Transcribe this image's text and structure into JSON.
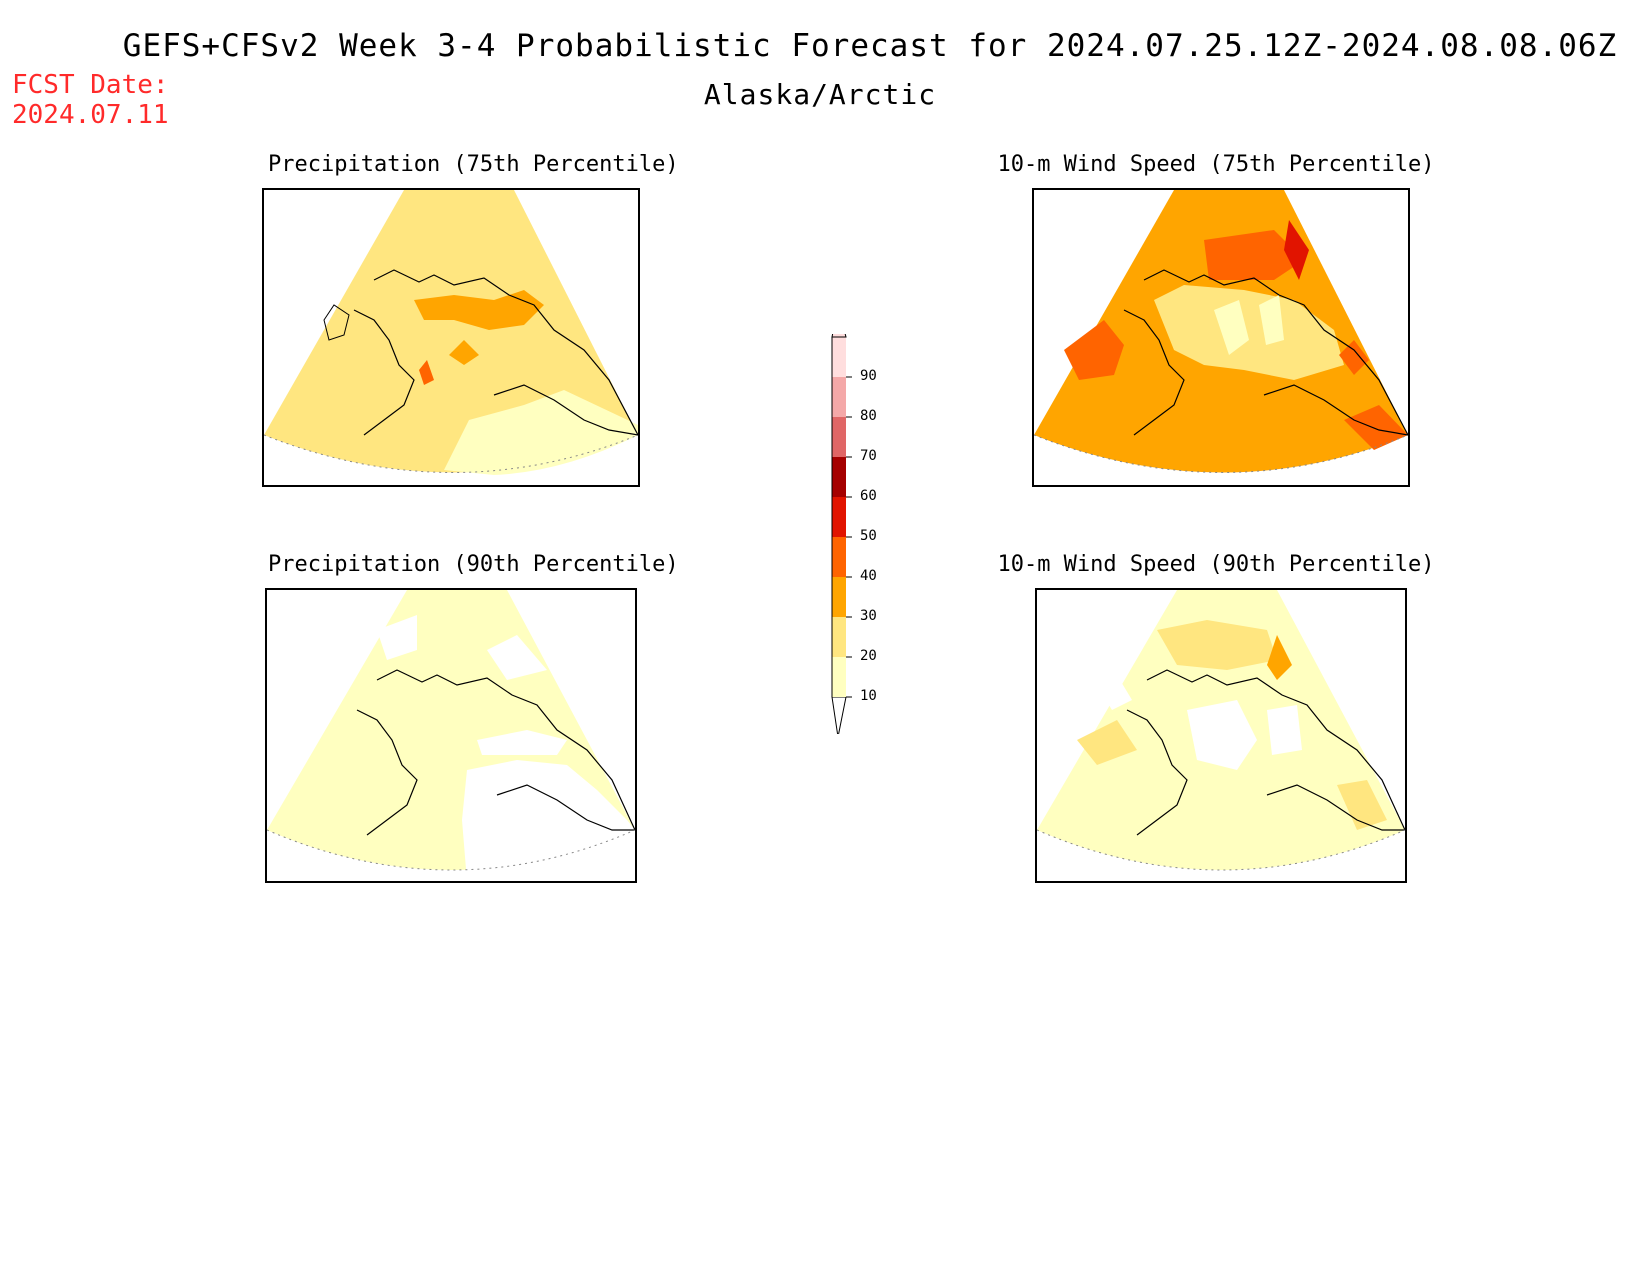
{
  "header": {
    "title": "GEFS+CFSv2 Week 3-4 Probabilistic Forecast for 2024.07.25.12Z-2024.08.08.06Z",
    "subtitle": "Alaska/Arctic",
    "fcst_line1": "FCST Date:",
    "fcst_line2": "2024.07.11"
  },
  "panels": [
    {
      "title": "Precipitation (75th Percentile)",
      "dominant_category": "20-30"
    },
    {
      "title": "10-m Wind Speed (75th Percentile)",
      "dominant_category": "30-40"
    },
    {
      "title": "Precipitation (90th Percentile)",
      "dominant_category": "10-20"
    },
    {
      "title": "10-m Wind Speed (90th Percentile)",
      "dominant_category": "10-20"
    }
  ],
  "legend": {
    "levels": [
      "10",
      "20",
      "30",
      "40",
      "50",
      "60",
      "70",
      "80",
      "90"
    ],
    "colors": [
      "#ffffc0",
      "#ffe680",
      "#ffa500",
      "#ff6400",
      "#e11400",
      "#a50000",
      "#e06666",
      "#f4a8a8",
      "#ffdede"
    ]
  }
}
